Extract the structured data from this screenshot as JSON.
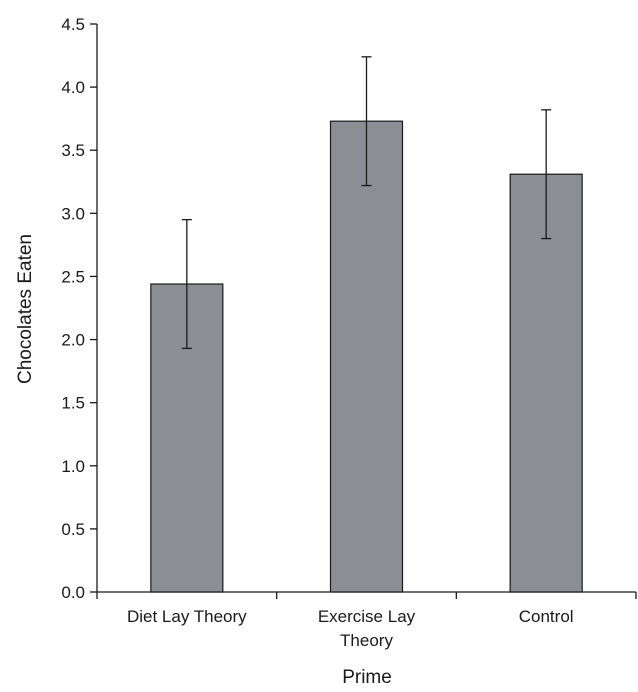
{
  "chart_data": {
    "type": "bar",
    "categories": [
      [
        "Diet Lay Theory"
      ],
      [
        "Exercise Lay",
        "Theory"
      ],
      [
        "Control"
      ]
    ],
    "values": [
      2.44,
      3.73,
      3.31
    ],
    "error": [
      0.51,
      0.51,
      0.51
    ],
    "xlabel": "Prime",
    "ylabel": "Chocolates Eaten",
    "ylim": [
      0,
      4.5
    ],
    "yticks": [
      "0.0",
      "0.5",
      "1.0",
      "1.5",
      "2.0",
      "2.5",
      "3.0",
      "3.5",
      "4.0",
      "4.5"
    ],
    "bar_color": "#8c8e93",
    "grid": false,
    "legend": "none"
  }
}
